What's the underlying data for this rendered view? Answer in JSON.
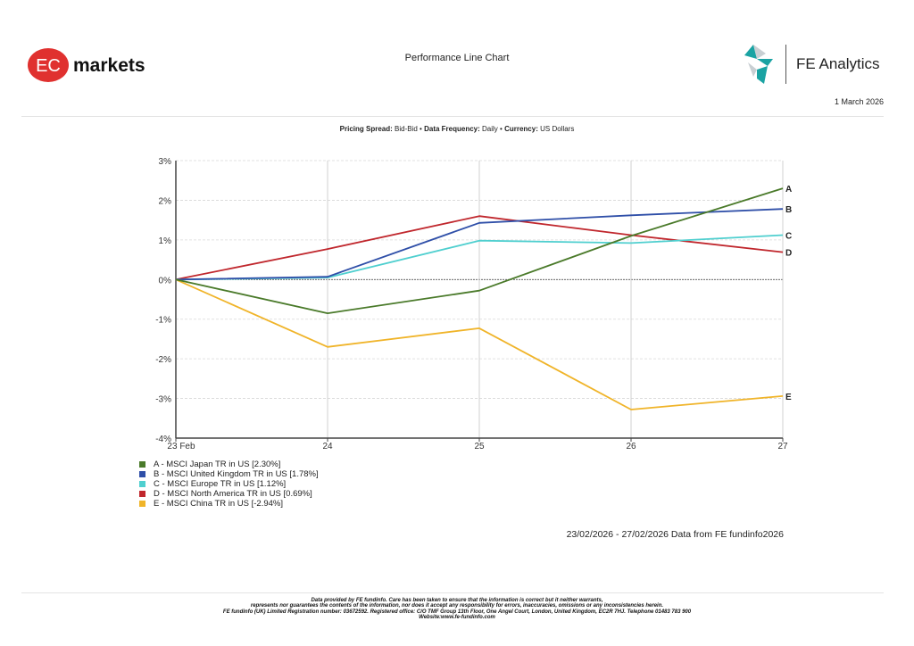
{
  "header": {
    "brand_logo": "EC markets",
    "brand_logo_parts": [
      "EC",
      "markets"
    ],
    "title": "Performance Line Chart",
    "partner_logo": "FE Analytics",
    "date": "1 March 2026"
  },
  "sub_header": {
    "pricing_spread_label": "Pricing Spread:",
    "pricing_spread_value": "Bid-Bid",
    "separator": "•",
    "data_frequency_label": "Data Frequency:",
    "data_frequency_value": "Daily",
    "currency_label": "Currency:",
    "currency_value": "US Dollars"
  },
  "chart_data": {
    "type": "line",
    "title": "Performance Line Chart",
    "xlabel": "",
    "ylabel": "",
    "x": [
      "23 Feb",
      "24",
      "25",
      "26",
      "27"
    ],
    "ylim": [
      -4,
      3
    ],
    "yticks": [
      3,
      2,
      1,
      0,
      -1,
      -2,
      -3,
      -4
    ],
    "ytick_labels": [
      "3%",
      "2%",
      "1%",
      "0%",
      "-1%",
      "-2%",
      "-3%",
      "-4%"
    ],
    "grid": true,
    "legend_position": "bottom-left",
    "series": [
      {
        "key": "A",
        "name": "A - MSCI Japan TR in US [2.30%]",
        "color": "#4a7a2a",
        "values": [
          0,
          -0.85,
          -0.28,
          1.1,
          2.3
        ]
      },
      {
        "key": "B",
        "name": "B - MSCI United Kingdom TR in US [1.78%]",
        "color": "#2f4fa8",
        "values": [
          0,
          0.07,
          1.43,
          1.62,
          1.78
        ]
      },
      {
        "key": "C",
        "name": "C - MSCI Europe TR in US [1.12%]",
        "color": "#4fcfcf",
        "values": [
          0,
          0.05,
          0.98,
          0.92,
          1.12
        ]
      },
      {
        "key": "D",
        "name": "D - MSCI North America TR in US [0.69%]",
        "color": "#c0272d",
        "values": [
          0,
          0.77,
          1.6,
          1.12,
          0.69
        ]
      },
      {
        "key": "E",
        "name": "E - MSCI China TR in US [-2.94%]",
        "color": "#f0b429",
        "values": [
          0,
          -1.7,
          -1.23,
          -3.28,
          -2.94
        ]
      }
    ]
  },
  "date_range_text": "23/02/2026 - 27/02/2026 Data from FE fundinfo2026",
  "footer": {
    "lines": [
      "Data provided by FE fundinfo. Care has been taken to ensure that the information is correct but it neither warrants,",
      "represents nor guarantees the contents of the information, nor does it accept any responsibility for errors, inaccuracies, omissions or any inconsistencies herein.",
      "FE fundinfo (UK) Limited Registration number: 03672592. Registered office: C/O TMF Group 13th Floor, One Angel Court, London, United Kingdom, EC2R 7HJ. Telephone 01483 783 900",
      "Website:www.fe-fundinfo.com"
    ]
  },
  "colors": {
    "ec_red": "#e0312f",
    "fe_teal": "#1aa3a3",
    "axis": "#444444",
    "grid": "#d6d6d6"
  }
}
